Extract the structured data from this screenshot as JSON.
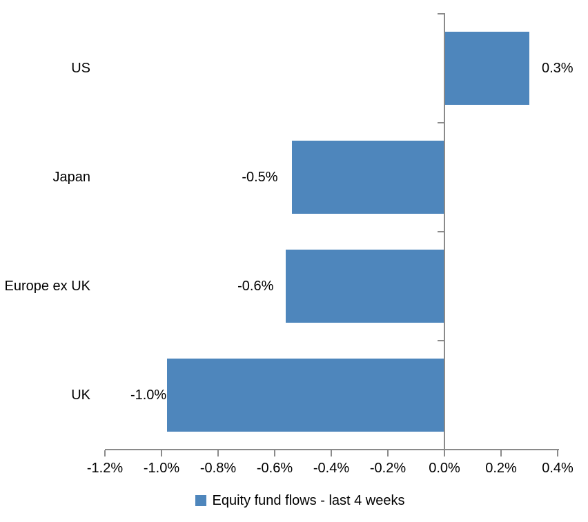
{
  "chart_data": {
    "type": "bar",
    "orientation": "horizontal",
    "title": "",
    "xlabel": "",
    "ylabel": "",
    "categories": [
      "US",
      "Japan",
      "Europe ex UK",
      "UK"
    ],
    "series": [
      {
        "name": "Equity fund flows - last 4 weeks",
        "unit": "%",
        "values": [
          0.3,
          -0.5,
          -0.6,
          -1.0
        ],
        "value_labels": [
          "0.3%",
          "-0.5%",
          "-0.6%",
          "-1.0%"
        ],
        "values_as_drawn": [
          0.3,
          -0.54,
          -0.56,
          -0.98
        ]
      }
    ],
    "xlim": [
      -1.2,
      0.4
    ],
    "x_tick_values": [
      -1.2,
      -1.0,
      -0.8,
      -0.6,
      -0.4,
      -0.2,
      0.0,
      0.2,
      0.4
    ],
    "x_tick_labels": [
      "-1.2%",
      "-1.0%",
      "-0.8%",
      "-0.6%",
      "-0.4%",
      "-0.2%",
      "0.0%",
      "0.2%",
      "0.4%"
    ],
    "grid": false,
    "legend_position": "bottom",
    "colors": {
      "bar": "#4E86BC",
      "axis": "#8A8A8A",
      "text": "#000000",
      "background": "#FFFFFF"
    }
  },
  "legend": {
    "label": "Equity fund flows - last 4 weeks"
  }
}
